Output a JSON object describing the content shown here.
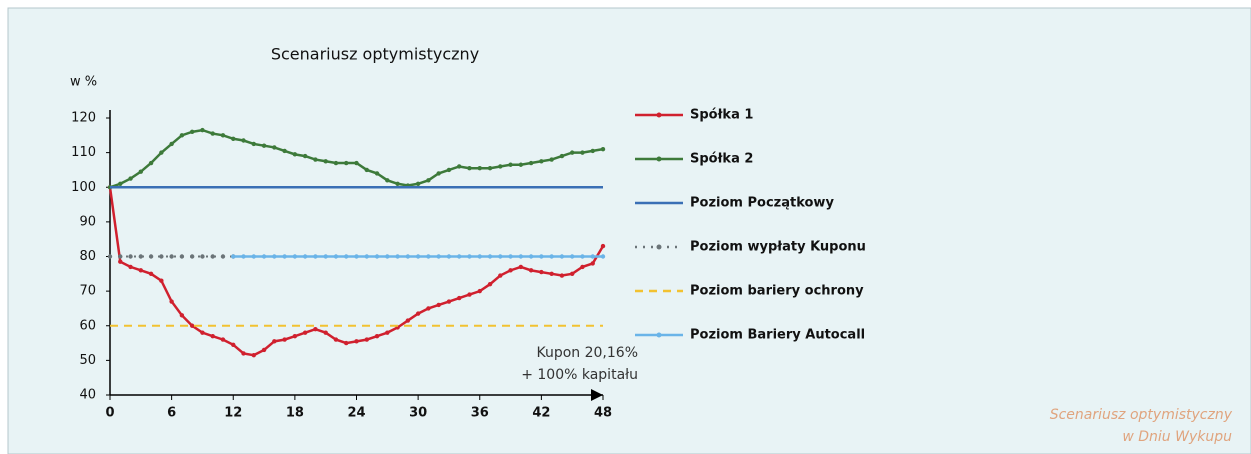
{
  "chart_data": {
    "type": "line",
    "title": "Scenariusz optymistyczny",
    "y_label": "w %",
    "annotation": [
      "Kupon 20,16%",
      "+ 100% kapitału"
    ],
    "caption": [
      "Scenariusz optymistyczny",
      "w Dniu Wykupu"
    ],
    "xlim": [
      0,
      48
    ],
    "xticks": [
      0,
      6,
      12,
      18,
      24,
      30,
      36,
      42,
      48
    ],
    "ylim": [
      40,
      120
    ],
    "yticks": [
      40,
      50,
      60,
      70,
      80,
      90,
      100,
      110,
      120
    ],
    "series": [
      {
        "name": "Spółka 1",
        "color": "#d0202e",
        "style": "solid",
        "marker": true,
        "x": [
          0,
          1,
          2,
          3,
          4,
          5,
          6,
          7,
          8,
          9,
          10,
          11,
          12,
          13,
          14,
          15,
          16,
          17,
          18,
          19,
          20,
          21,
          22,
          23,
          24,
          25,
          26,
          27,
          28,
          29,
          30,
          31,
          32,
          33,
          34,
          35,
          36,
          37,
          38,
          39,
          40,
          41,
          42,
          43,
          44,
          45,
          46,
          47,
          48
        ],
        "values": [
          100,
          78.5,
          77,
          76,
          75,
          73,
          67,
          63,
          60,
          58,
          57,
          56,
          54.5,
          52,
          51.5,
          53,
          55.5,
          56,
          57,
          58,
          59,
          58,
          56,
          55,
          55.5,
          56,
          57,
          58,
          59.5,
          61.5,
          63.5,
          65,
          66,
          67,
          68,
          69,
          70,
          72,
          74.5,
          76,
          77,
          76,
          75.5,
          75,
          74.5,
          75,
          77,
          78,
          83
        ]
      },
      {
        "name": "Spółka 2",
        "color": "#3d7a3a",
        "style": "solid",
        "marker": true,
        "x": [
          0,
          1,
          2,
          3,
          4,
          5,
          6,
          7,
          8,
          9,
          10,
          11,
          12,
          13,
          14,
          15,
          16,
          17,
          18,
          19,
          20,
          21,
          22,
          23,
          24,
          25,
          26,
          27,
          28,
          29,
          30,
          31,
          32,
          33,
          34,
          35,
          36,
          37,
          38,
          39,
          40,
          41,
          42,
          43,
          44,
          45,
          46,
          47,
          48
        ],
        "values": [
          100,
          101,
          102.5,
          104.5,
          107,
          110,
          112.5,
          115,
          116,
          116.5,
          115.5,
          115,
          114,
          113.5,
          112.5,
          112,
          111.5,
          110.5,
          109.5,
          109,
          108,
          107.5,
          107,
          107,
          107,
          105,
          104,
          102,
          101,
          100.5,
          101,
          102,
          104,
          105,
          106,
          105.5,
          105.5,
          105.5,
          106,
          106.5,
          106.5,
          107,
          107.5,
          108,
          109,
          110,
          110,
          110.5,
          111
        ]
      },
      {
        "name": "Poziom Początkowy",
        "color": "#3a6fb5",
        "style": "solid",
        "marker": false,
        "x": [
          0,
          48
        ],
        "values": [
          100,
          100
        ]
      },
      {
        "name": "Poziom wypłaty Kuponu",
        "color": "#6b7478",
        "style": "dashdot",
        "marker": true,
        "x": [
          0,
          1,
          2,
          3,
          4,
          5,
          6,
          7,
          8,
          9,
          10,
          11,
          12
        ],
        "values": [
          80,
          80,
          80,
          80,
          80,
          80,
          80,
          80,
          80,
          80,
          80,
          80,
          80
        ]
      },
      {
        "name": "Poziom bariery ochrony",
        "color": "#f2c230",
        "style": "dashed",
        "marker": false,
        "x": [
          0,
          48
        ],
        "values": [
          60,
          60
        ]
      },
      {
        "name": "Poziom Bariery Autocall",
        "color": "#6ab4e8",
        "style": "solid",
        "marker": true,
        "x": [
          12,
          13,
          14,
          15,
          16,
          17,
          18,
          19,
          20,
          21,
          22,
          23,
          24,
          25,
          26,
          27,
          28,
          29,
          30,
          31,
          32,
          33,
          34,
          35,
          36,
          37,
          38,
          39,
          40,
          41,
          42,
          43,
          44,
          45,
          46,
          47,
          48
        ],
        "values": [
          80,
          80,
          80,
          80,
          80,
          80,
          80,
          80,
          80,
          80,
          80,
          80,
          80,
          80,
          80,
          80,
          80,
          80,
          80,
          80,
          80,
          80,
          80,
          80,
          80,
          80,
          80,
          80,
          80,
          80,
          80,
          80,
          80,
          80,
          80,
          80,
          80
        ]
      }
    ]
  }
}
